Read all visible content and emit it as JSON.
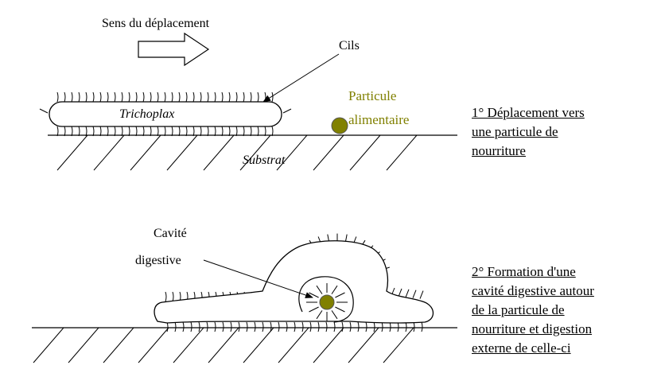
{
  "labels": {
    "direction": "Sens du déplacement",
    "cilia": "Cils",
    "organism": "Trichoplax",
    "particle_line1": "Particule",
    "particle_line2": "alimentaire",
    "substrate": "Substrat",
    "cavity_line1": "Cavité",
    "cavity_line2": "digestive"
  },
  "captions": {
    "step1": [
      "1° Déplacement vers",
      "une particule de",
      "nourriture"
    ],
    "step2": [
      "2° Formation d'une",
      "cavité digestive autour",
      "de la particule de",
      "nourriture et digestion",
      "externe  de celle-ci"
    ]
  },
  "colors": {
    "particle": "#808000",
    "particle_text": "#808000",
    "ink": "#000000"
  }
}
